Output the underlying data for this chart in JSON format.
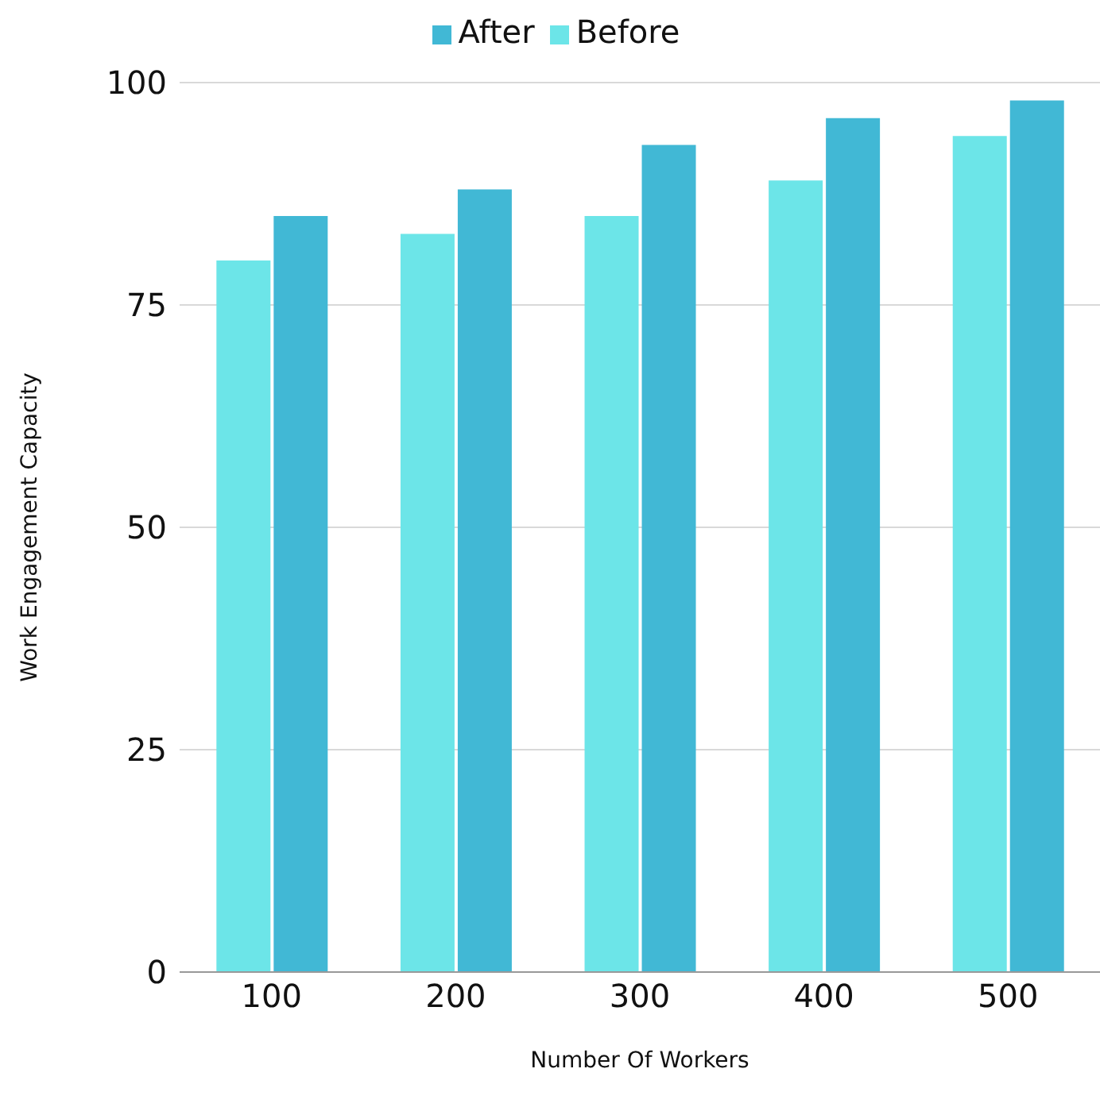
{
  "chart_data": {
    "type": "bar",
    "xlabel": "Number Of Workers",
    "ylabel": "Work Engagement Capacity",
    "categories": [
      "100",
      "200",
      "300",
      "400",
      "500"
    ],
    "series": [
      {
        "name": "Before",
        "color": "#6ce5e8",
        "values": [
          80,
          83,
          85,
          89,
          94
        ]
      },
      {
        "name": "After",
        "color": "#41b8d5",
        "values": [
          85,
          88,
          93,
          96,
          98
        ]
      }
    ],
    "ylim": [
      0,
      100
    ],
    "yticks": [
      0,
      25,
      50,
      75,
      100
    ],
    "grid": "y",
    "legend": "top"
  }
}
